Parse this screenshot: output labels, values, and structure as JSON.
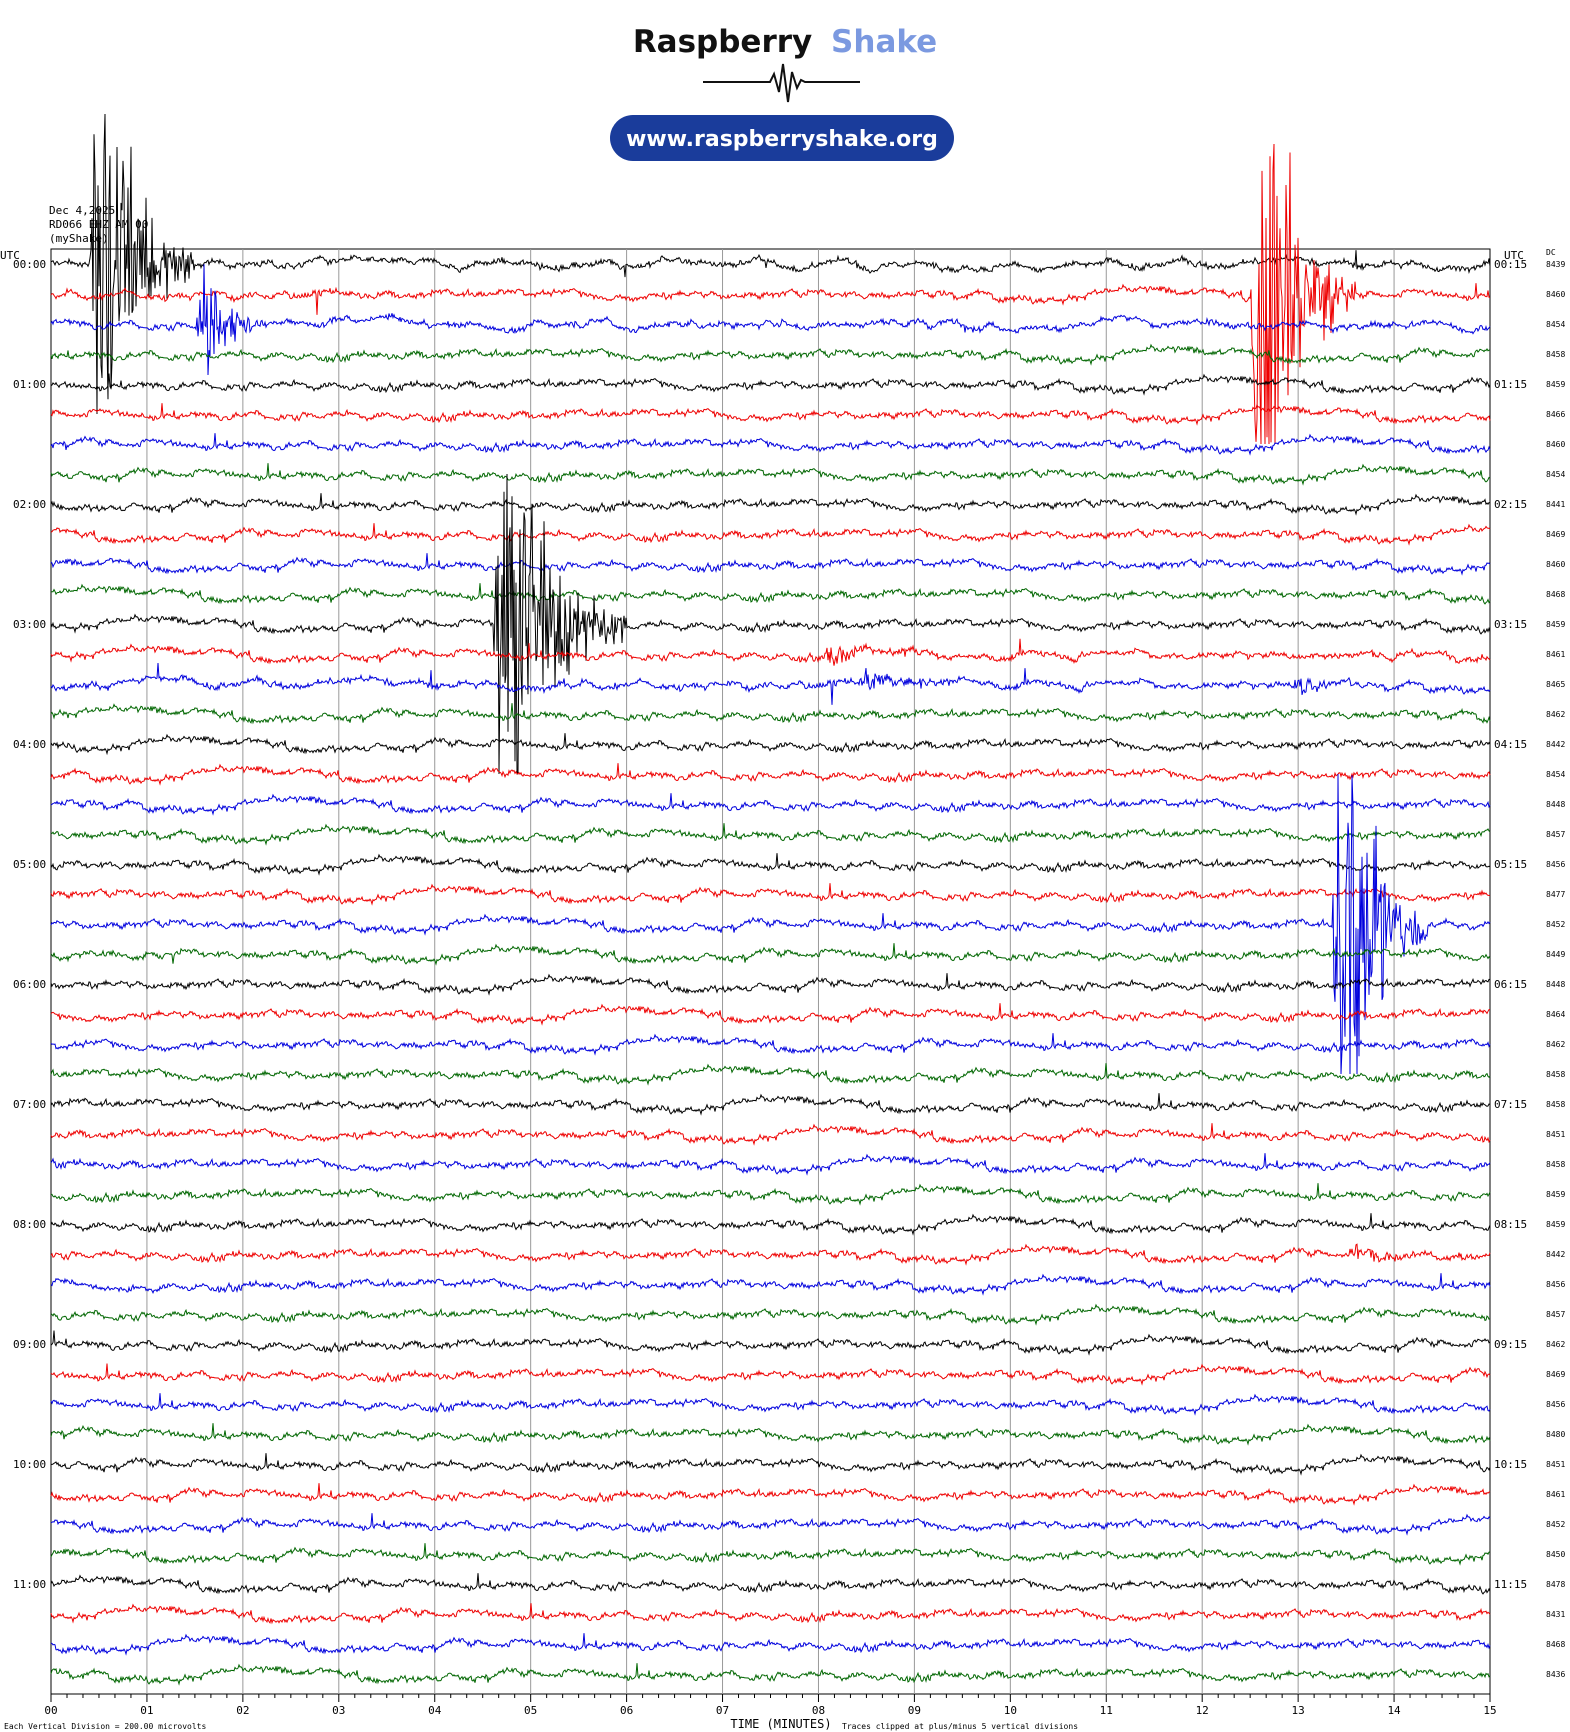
{
  "brand": {
    "name_part1": "Raspberry",
    "name_part2": "Shake",
    "url": "www.raspberryshake.org",
    "colors": {
      "dark": "#111111",
      "accent": "#7b99e0",
      "pill": "#1a3c9b"
    }
  },
  "header": {
    "date": "Dec 4,2025",
    "station": "RD066 EHZ AM 00",
    "source": "(myShake)"
  },
  "footer": {
    "scale_note": "Each Vertical Division =  200.00 microvolts",
    "x_title": "TIME (MINUTES)",
    "clip_note": "Traces clipped at plus/minus 5 vertical divisions"
  },
  "chart_data": {
    "type": "line",
    "title": "",
    "left_axis_label": "UTC",
    "right_axis_label": "UTC",
    "dc_label": "DC",
    "xlabel": "TIME (MINUTES)",
    "xlim": [
      0,
      15
    ],
    "x_ticks": [
      "00",
      "01",
      "02",
      "03",
      "04",
      "05",
      "06",
      "07",
      "08",
      "09",
      "10",
      "11",
      "12",
      "13",
      "14",
      "15"
    ],
    "grid": true,
    "trace_colors": [
      "#000000",
      "#ee0000",
      "#0000dd",
      "#006600"
    ],
    "rows_per_hour": 4,
    "left_hour_labels": [
      "00:00",
      "01:00",
      "02:00",
      "03:00",
      "04:00",
      "05:00",
      "06:00",
      "07:00",
      "08:00",
      "09:00",
      "10:00",
      "11:00"
    ],
    "right_hour_labels": [
      "00:15",
      "01:15",
      "02:15",
      "03:15",
      "04:15",
      "05:15",
      "06:15",
      "07:15",
      "08:15",
      "09:15",
      "10:15",
      "11:15"
    ],
    "dc_values": [
      "8439",
      "8460",
      "8454",
      "8458",
      "8459",
      "8466",
      "8460",
      "8454",
      "8441",
      "8469",
      "8460",
      "8468",
      "8459",
      "8461",
      "8465",
      "8462",
      "8442",
      "8454",
      "8448",
      "8457",
      "8456",
      "8477",
      "8452",
      "8449",
      "8448",
      "8464",
      "8462",
      "8458",
      "8458",
      "8451",
      "8458",
      "8459",
      "8459",
      "8442",
      "8456",
      "8457",
      "8462",
      "8469",
      "8456",
      "8480",
      "8451",
      "8461",
      "8452",
      "8450",
      "8478",
      "8431",
      "8468",
      "8436"
    ],
    "events": [
      {
        "row": 0,
        "minute": 0.5,
        "amp": 5.0,
        "dur": 1.0
      },
      {
        "row": 2,
        "minute": 1.6,
        "amp": 1.2,
        "dur": 0.7
      },
      {
        "row": 1,
        "minute": 12.6,
        "amp": 5.0,
        "dur": 1.0
      },
      {
        "row": 12,
        "minute": 4.7,
        "amp": 5.0,
        "dur": 1.3
      },
      {
        "row": 22,
        "minute": 13.45,
        "amp": 5.0,
        "dur": 0.9
      },
      {
        "row": 13,
        "minute": 8.1,
        "amp": 0.25,
        "dur": 0.8
      },
      {
        "row": 14,
        "minute": 8.5,
        "amp": 0.2,
        "dur": 1.0
      },
      {
        "row": 14,
        "minute": 13.0,
        "amp": 0.2,
        "dur": 0.8
      },
      {
        "row": 33,
        "minute": 13.6,
        "amp": 0.2,
        "dur": 0.8
      }
    ]
  }
}
